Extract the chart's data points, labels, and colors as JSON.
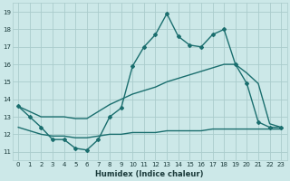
{
  "xlabel": "Humidex (Indice chaleur)",
  "background_color": "#cce8e8",
  "grid_color": "#aacccc",
  "line_color": "#1a6e6e",
  "xlim": [
    -0.5,
    23.5
  ],
  "ylim": [
    10.5,
    19.5
  ],
  "yticks": [
    11,
    12,
    13,
    14,
    15,
    16,
    17,
    18,
    19
  ],
  "xticks": [
    0,
    1,
    2,
    3,
    4,
    5,
    6,
    7,
    8,
    9,
    10,
    11,
    12,
    13,
    14,
    15,
    16,
    17,
    18,
    19,
    20,
    21,
    22,
    23
  ],
  "series": [
    {
      "x": [
        0,
        1,
        2,
        3,
        4,
        5,
        6,
        7,
        8,
        9,
        10,
        11,
        12,
        13,
        14,
        15,
        16,
        17,
        18,
        19,
        20,
        21,
        22,
        23
      ],
      "y": [
        13.6,
        13.0,
        12.4,
        11.7,
        11.7,
        11.2,
        11.1,
        11.7,
        13.0,
        13.5,
        15.9,
        17.0,
        17.7,
        18.9,
        17.6,
        17.1,
        17.0,
        17.7,
        18.0,
        16.0,
        14.9,
        12.7,
        12.4,
        12.4
      ],
      "marker": "D",
      "markersize": 2.0,
      "linewidth": 1.0
    },
    {
      "x": [
        0,
        1,
        2,
        3,
        4,
        5,
        6,
        7,
        8,
        9,
        10,
        11,
        12,
        13,
        14,
        15,
        16,
        17,
        18,
        19,
        20,
        21,
        22,
        23
      ],
      "y": [
        13.6,
        13.3,
        13.0,
        13.0,
        13.0,
        12.9,
        12.9,
        13.3,
        13.7,
        14.0,
        14.3,
        14.5,
        14.7,
        15.0,
        15.2,
        15.4,
        15.6,
        15.8,
        16.0,
        16.0,
        15.5,
        14.9,
        12.6,
        12.4
      ],
      "marker": null,
      "linewidth": 1.0
    },
    {
      "x": [
        0,
        1,
        2,
        3,
        4,
        5,
        6,
        7,
        8,
        9,
        10,
        11,
        12,
        13,
        14,
        15,
        16,
        17,
        18,
        19,
        20,
        21,
        22,
        23
      ],
      "y": [
        12.4,
        12.2,
        12.0,
        11.9,
        11.9,
        11.8,
        11.8,
        11.9,
        12.0,
        12.0,
        12.1,
        12.1,
        12.1,
        12.2,
        12.2,
        12.2,
        12.2,
        12.3,
        12.3,
        12.3,
        12.3,
        12.3,
        12.3,
        12.3
      ],
      "marker": null,
      "linewidth": 1.0
    }
  ]
}
